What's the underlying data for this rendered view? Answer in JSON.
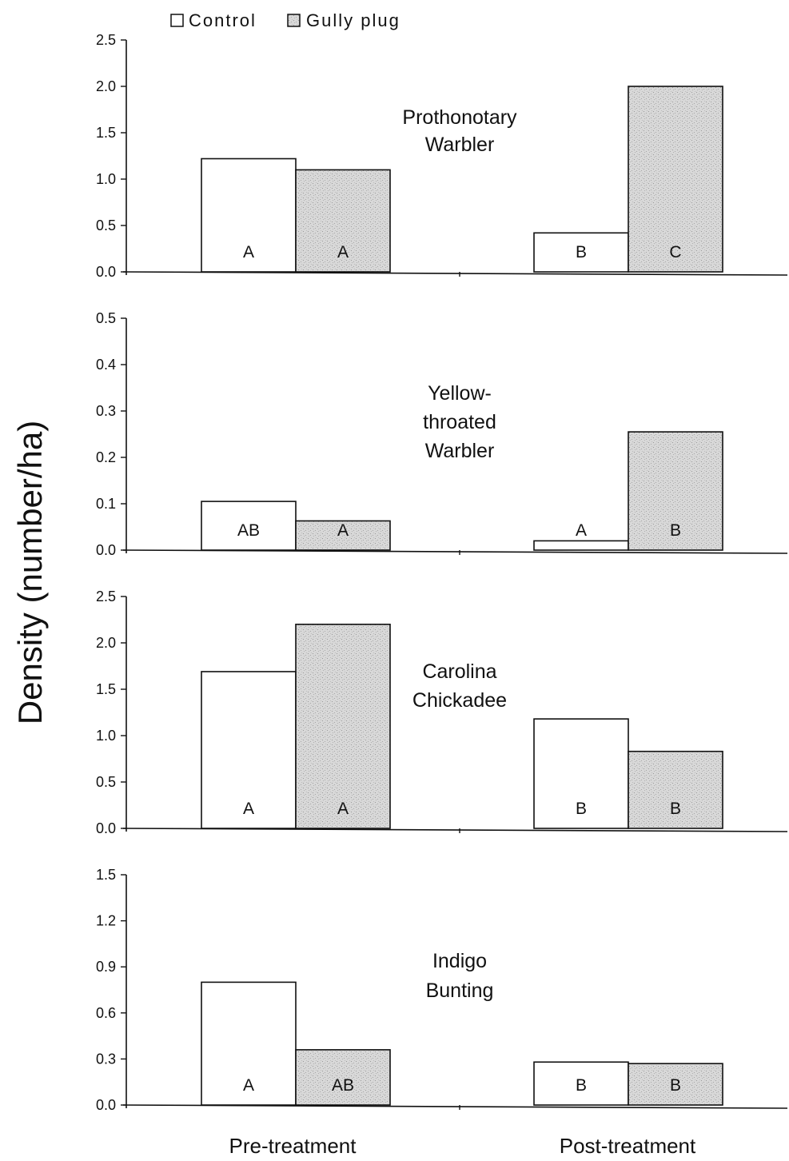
{
  "chart_data": {
    "type": "bar",
    "ylabel": "Density (number/ha)",
    "categories": [
      "Pre-treatment",
      "Post-treatment"
    ],
    "legend": [
      {
        "name": "Control",
        "color": "#ffffff"
      },
      {
        "name": "Gully plug",
        "color": "#d6d6d6"
      }
    ],
    "colors": {
      "control": "#ffffff",
      "gully_plug": "#d6d6d6",
      "axis": "#111111"
    },
    "panels": [
      {
        "species_line1": "Prothonotary",
        "species_line2": "Warbler",
        "ylim": [
          0,
          2.5
        ],
        "yticks": [
          "0.0",
          "0.5",
          "1.0",
          "1.5",
          "2.0",
          "2.5"
        ],
        "series": [
          {
            "name": "Control",
            "values": [
              1.22,
              0.42
            ],
            "letters": [
              "A",
              "B"
            ]
          },
          {
            "name": "Gully plug",
            "values": [
              1.1,
              2.0
            ],
            "letters": [
              "A",
              "C"
            ]
          }
        ]
      },
      {
        "species_line1": "Yellow-",
        "species_line2": "throated",
        "species_line3": "Warbler",
        "ylim": [
          0,
          0.5
        ],
        "yticks": [
          "0.0",
          "0.1",
          "0.2",
          "0.3",
          "0.4",
          "0.5"
        ],
        "series": [
          {
            "name": "Control",
            "values": [
              0.105,
              0.02
            ],
            "letters": [
              "AB",
              "A"
            ]
          },
          {
            "name": "Gully plug",
            "values": [
              0.063,
              0.255
            ],
            "letters": [
              "A",
              "B"
            ]
          }
        ]
      },
      {
        "species_line1": "Carolina",
        "species_line2": "Chickadee",
        "ylim": [
          0,
          2.5
        ],
        "yticks": [
          "0.0",
          "0.5",
          "1.0",
          "1.5",
          "2.0",
          "2.5"
        ],
        "series": [
          {
            "name": "Control",
            "values": [
              1.69,
              1.18
            ],
            "letters": [
              "A",
              "B"
            ]
          },
          {
            "name": "Gully plug",
            "values": [
              2.2,
              0.83
            ],
            "letters": [
              "A",
              "B"
            ]
          }
        ]
      },
      {
        "species_line1": "Indigo",
        "species_line2": "Bunting",
        "ylim": [
          0,
          1.5
        ],
        "yticks": [
          "0.0",
          "0.3",
          "0.6",
          "0.9",
          "1.2",
          "1.5"
        ],
        "series": [
          {
            "name": "Control",
            "values": [
              0.8,
              0.28
            ],
            "letters": [
              "A",
              "B"
            ]
          },
          {
            "name": "Gully plug",
            "values": [
              0.36,
              0.27
            ],
            "letters": [
              "AB",
              "B"
            ]
          }
        ]
      }
    ]
  }
}
